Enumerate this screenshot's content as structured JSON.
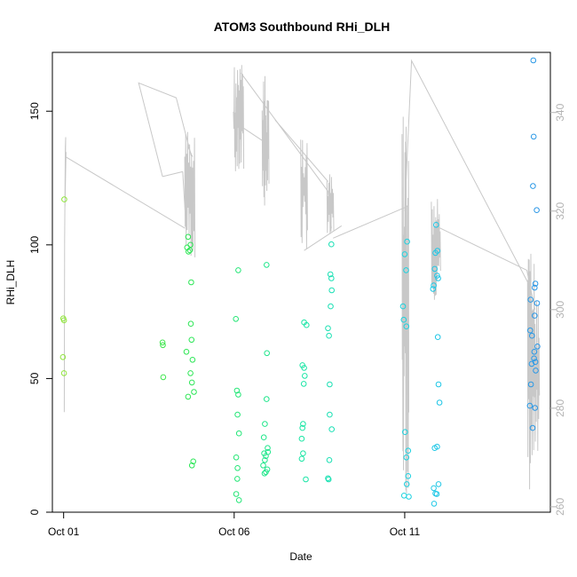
{
  "chart_data": {
    "type": "scatter",
    "title": "ATOM3 Southbound RHi_DLH",
    "xlabel": "Date",
    "ylabel": "RHi_DLH",
    "x_unit": "days (Oct 2016)",
    "xlim": [
      0.67,
      15.27
    ],
    "ylim": [
      0,
      172
    ],
    "x_ticks": [
      {
        "v": 1,
        "label": "Oct 01"
      },
      {
        "v": 6,
        "label": "Oct 06"
      },
      {
        "v": 11,
        "label": "Oct 11"
      }
    ],
    "y_ticks": [
      0,
      50,
      100,
      150
    ],
    "y2_ticks": [
      260,
      280,
      300,
      320,
      340
    ],
    "y2lim": [
      258.9,
      352.2
    ],
    "grid": false,
    "series": [
      {
        "kind": "points",
        "color_scale": [
          "#8fe63a",
          "#2de64f",
          "#19e6a3",
          "#1ccfe6",
          "#2a96e6"
        ],
        "points": [
          [
            1.02,
            117
          ],
          [
            0.99,
            72.5
          ],
          [
            1.01,
            71.8
          ],
          [
            0.98,
            58
          ],
          [
            1.01,
            52
          ],
          [
            3.9,
            63.5
          ],
          [
            3.91,
            62.5
          ],
          [
            3.92,
            50.5
          ],
          [
            4.65,
            103
          ],
          [
            4.62,
            99
          ],
          [
            4.66,
            97.5
          ],
          [
            4.7,
            98
          ],
          [
            4.72,
            100
          ],
          [
            4.74,
            86
          ],
          [
            4.73,
            70.5
          ],
          [
            4.75,
            64.5
          ],
          [
            4.6,
            60
          ],
          [
            4.78,
            57
          ],
          [
            4.72,
            52
          ],
          [
            4.76,
            48.5
          ],
          [
            4.82,
            45
          ],
          [
            4.65,
            43.2
          ],
          [
            4.8,
            19
          ],
          [
            4.76,
            17.5
          ],
          [
            6.05,
            72.3
          ],
          [
            6.12,
            90.5
          ],
          [
            6.08,
            45.5
          ],
          [
            6.12,
            44
          ],
          [
            6.1,
            36.5
          ],
          [
            6.14,
            29.5
          ],
          [
            6.06,
            20.5
          ],
          [
            6.1,
            16.5
          ],
          [
            6.09,
            12.5
          ],
          [
            6.06,
            6.8
          ],
          [
            6.14,
            4.5
          ],
          [
            6.95,
            92.5
          ],
          [
            6.96,
            59.5
          ],
          [
            6.95,
            42.3
          ],
          [
            6.9,
            33
          ],
          [
            6.87,
            28
          ],
          [
            6.98,
            24
          ],
          [
            6.88,
            22
          ],
          [
            6.93,
            21
          ],
          [
            6.99,
            22.5
          ],
          [
            6.9,
            19.5
          ],
          [
            6.85,
            17.5
          ],
          [
            6.97,
            16
          ],
          [
            6.93,
            15
          ],
          [
            6.89,
            14.5
          ],
          [
            8.05,
            71
          ],
          [
            8.12,
            70
          ],
          [
            8.0,
            55
          ],
          [
            8.05,
            54
          ],
          [
            8.07,
            51
          ],
          [
            8.04,
            48
          ],
          [
            8.02,
            33
          ],
          [
            8.0,
            31.5
          ],
          [
            7.98,
            27.5
          ],
          [
            8.02,
            22
          ],
          [
            7.98,
            20
          ],
          [
            8.1,
            12.3
          ],
          [
            8.85,
            100.2
          ],
          [
            8.82,
            89
          ],
          [
            8.85,
            87.5
          ],
          [
            8.86,
            83
          ],
          [
            8.83,
            77
          ],
          [
            8.75,
            68.8
          ],
          [
            8.78,
            66
          ],
          [
            8.8,
            47.8
          ],
          [
            8.8,
            36.5
          ],
          [
            8.86,
            31
          ],
          [
            8.79,
            19.5
          ],
          [
            8.75,
            12.7
          ],
          [
            8.77,
            12.3
          ],
          [
            11.07,
            101.2
          ],
          [
            11.0,
            96.5
          ],
          [
            11.04,
            90.5
          ],
          [
            10.95,
            77
          ],
          [
            10.97,
            72
          ],
          [
            11.05,
            69.5
          ],
          [
            11.01,
            30
          ],
          [
            11.1,
            23
          ],
          [
            11.05,
            20.5
          ],
          [
            11.1,
            13.5
          ],
          [
            11.06,
            10.5
          ],
          [
            10.98,
            6.2
          ],
          [
            11.12,
            5.8
          ],
          [
            11.92,
            107.5
          ],
          [
            11.96,
            97.8
          ],
          [
            11.9,
            97
          ],
          [
            11.88,
            91
          ],
          [
            11.95,
            88.5
          ],
          [
            11.98,
            87.5
          ],
          [
            11.85,
            84.8
          ],
          [
            11.83,
            83.5
          ],
          [
            11.97,
            65.5
          ],
          [
            11.99,
            47.8
          ],
          [
            12.02,
            41
          ],
          [
            11.95,
            24.5
          ],
          [
            11.88,
            24
          ],
          [
            11.85,
            9
          ],
          [
            11.9,
            7
          ],
          [
            11.94,
            6.8
          ],
          [
            11.86,
            3.2
          ],
          [
            11.99,
            10.5
          ],
          [
            14.77,
            169
          ],
          [
            14.78,
            140.5
          ],
          [
            14.76,
            122
          ],
          [
            14.87,
            113
          ],
          [
            14.83,
            85.5
          ],
          [
            14.81,
            84
          ],
          [
            14.69,
            79.5
          ],
          [
            14.88,
            78.2
          ],
          [
            14.81,
            73.5
          ],
          [
            14.68,
            68
          ],
          [
            14.73,
            66
          ],
          [
            14.89,
            62
          ],
          [
            14.8,
            60
          ],
          [
            14.79,
            57.5
          ],
          [
            14.83,
            56.2
          ],
          [
            14.72,
            55.5
          ],
          [
            14.84,
            53
          ],
          [
            14.7,
            47.8
          ],
          [
            14.67,
            39.8
          ],
          [
            14.82,
            39
          ],
          [
            14.75,
            31.5
          ]
        ]
      },
      {
        "kind": "line",
        "axis": "right",
        "color": "#c8c8c8",
        "segments": [
          [
            [
              1.02,
              279.2
            ],
            [
              1.03,
              314
            ],
            [
              1.05,
              333
            ],
            [
              1.06,
              335
            ],
            [
              1.04,
              321
            ],
            [
              1.07,
              332
            ]
          ],
          [
            [
              1.06,
              331
            ],
            [
              4.56,
              316.5
            ]
          ],
          [
            [
              4.56,
              320
            ],
            [
              4.49,
              328
            ]
          ],
          [
            [
              4.49,
              328
            ],
            [
              3.9,
              327
            ]
          ],
          [
            [
              3.9,
              327
            ],
            [
              3.2,
              346
            ],
            [
              4.3,
              343
            ],
            [
              4.75,
              331
            ]
          ],
          [
            [
              4.65,
              333
            ],
            [
              4.78,
              331
            ]
          ],
          [
            [
              6.02,
              338
            ],
            [
              7.0,
              333.5
            ]
          ],
          [
            [
              6.2,
              348
            ],
            [
              8.75,
              324
            ]
          ],
          [
            [
              7.2,
              338.5
            ],
            [
              8.75,
              326
            ]
          ],
          [
            [
              8.75,
              324
            ],
            [
              8.85,
              316.5
            ]
          ],
          [
            [
              8.9,
              314.5
            ],
            [
              11.1,
              321
            ]
          ],
          [
            [
              8.05,
              312
            ],
            [
              9.15,
              317
            ]
          ],
          [
            [
              11.0,
              320
            ],
            [
              11.2,
              350.5
            ],
            [
              14.65,
              305
            ]
          ],
          [
            [
              11.9,
              317
            ],
            [
              14.58,
              308
            ]
          ],
          [
            [
              14.58,
              308
            ],
            [
              14.82,
              300
            ]
          ]
        ],
        "bursts": [
          {
            "x0": 4.55,
            "x1": 4.85,
            "lo": 310,
            "hi": 337,
            "n": 22
          },
          {
            "x0": 5.98,
            "x1": 6.28,
            "lo": 326,
            "hi": 350.5,
            "n": 26
          },
          {
            "x0": 6.82,
            "x1": 7.02,
            "lo": 320,
            "hi": 348,
            "n": 20
          },
          {
            "x0": 7.95,
            "x1": 8.15,
            "lo": 312,
            "hi": 337.5,
            "n": 16
          },
          {
            "x0": 8.72,
            "x1": 8.92,
            "lo": 313,
            "hi": 327.5,
            "n": 16
          },
          {
            "x0": 10.92,
            "x1": 11.12,
            "lo": 262,
            "hi": 340,
            "n": 24
          },
          {
            "x0": 11.78,
            "x1": 12.05,
            "lo": 302,
            "hi": 322.5,
            "n": 22
          },
          {
            "x0": 14.6,
            "x1": 14.95,
            "lo": 262,
            "hi": 312,
            "n": 30
          }
        ]
      }
    ]
  }
}
